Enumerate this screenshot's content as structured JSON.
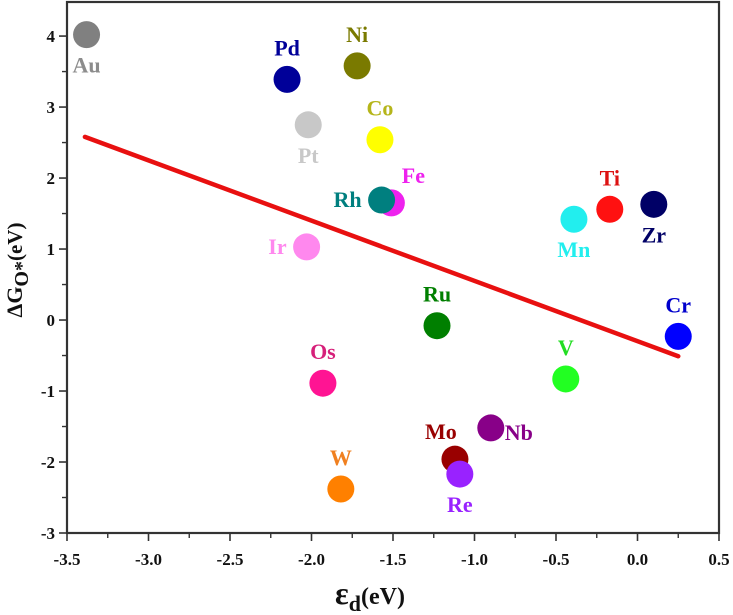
{
  "chart_data": {
    "type": "scatter",
    "title": "",
    "xlabel": {
      "main": "ε",
      "sub": "d",
      "unit": "(eV)"
    },
    "ylabel": {
      "main": "ΔG",
      "sub": "O*",
      "unit": "(eV)"
    },
    "xlim": [
      -3.5,
      0.5
    ],
    "ylim": [
      -3,
      4.48
    ],
    "xticks": [
      -3.5,
      -3.0,
      -2.5,
      -2.0,
      -1.5,
      -1.0,
      -0.5,
      0.0,
      0.5
    ],
    "xtick_labels": [
      "-3.5",
      "-3.0",
      "-2.5",
      "-2.0",
      "-1.5",
      "-1.0",
      "-0.5",
      "0.0",
      "0.5"
    ],
    "yticks": [
      -3,
      -2,
      -1,
      0,
      1,
      2,
      3,
      4
    ],
    "ytick_labels": [
      "-3",
      "-2",
      "-1",
      "0",
      "1",
      "2",
      "3",
      "4"
    ],
    "grid": false,
    "legend": "none",
    "points": [
      {
        "label": "Au",
        "x": -3.38,
        "y": 4.02,
        "color": "#808080",
        "label_color": "#8c8c8c",
        "label_pos": "below"
      },
      {
        "label": "Pd",
        "x": -2.15,
        "y": 3.39,
        "color": "#000099",
        "label_color": "#000099",
        "label_pos": "above"
      },
      {
        "label": "Ni",
        "x": -1.72,
        "y": 3.58,
        "color": "#7a7a00",
        "label_color": "#7a7a00",
        "label_pos": "above"
      },
      {
        "label": "Pt",
        "x": -2.02,
        "y": 2.75,
        "color": "#c8c8c8",
        "label_color": "#c8c8c8",
        "label_pos": "below"
      },
      {
        "label": "Co",
        "x": -1.58,
        "y": 2.54,
        "color": "#ffff00",
        "label_color": "#b5b51a",
        "label_pos": "above"
      },
      {
        "label": "Fe",
        "x": -1.51,
        "y": 1.65,
        "color": "#ee22ee",
        "label_color": "#ee22ee",
        "label_pos": "above-right"
      },
      {
        "label": "Rh",
        "x": -1.57,
        "y": 1.69,
        "color": "#007f7f",
        "label_color": "#007f7f",
        "label_pos": "left"
      },
      {
        "label": "Ir",
        "x": -2.03,
        "y": 1.03,
        "color": "#ff88ee",
        "label_color": "#ff88ee",
        "label_pos": "left"
      },
      {
        "label": "Ru",
        "x": -1.23,
        "y": -0.08,
        "color": "#007f00",
        "label_color": "#007f00",
        "label_pos": "above"
      },
      {
        "label": "Os",
        "x": -1.93,
        "y": -0.89,
        "color": "#ff1493",
        "label_color": "#d6207a",
        "label_pos": "above"
      },
      {
        "label": "W",
        "x": -1.82,
        "y": -2.38,
        "color": "#ff8000",
        "label_color": "#f08020",
        "label_pos": "above"
      },
      {
        "label": "Mo",
        "x": -1.12,
        "y": -1.96,
        "color": "#990000",
        "label_color": "#990000",
        "label_pos": "above-left"
      },
      {
        "label": "Re",
        "x": -1.09,
        "y": -2.17,
        "color": "#9922ff",
        "label_color": "#9922ff",
        "label_pos": "below"
      },
      {
        "label": "Nb",
        "x": -0.9,
        "y": -1.52,
        "color": "#880088",
        "label_color": "#880088",
        "label_pos": "below-right"
      },
      {
        "label": "V",
        "x": -0.44,
        "y": -0.83,
        "color": "#22ff22",
        "label_color": "#22dd22",
        "label_pos": "above"
      },
      {
        "label": "Mn",
        "x": -0.39,
        "y": 1.42,
        "color": "#22eeee",
        "label_color": "#22eeee",
        "label_pos": "below"
      },
      {
        "label": "Ti",
        "x": -0.17,
        "y": 1.56,
        "color": "#ff1111",
        "label_color": "#dd1111",
        "label_pos": "above"
      },
      {
        "label": "Zr",
        "x": 0.1,
        "y": 1.63,
        "color": "#000066",
        "label_color": "#000066",
        "label_pos": "below"
      },
      {
        "label": "Cr",
        "x": 0.25,
        "y": -0.23,
        "color": "#0000ff",
        "label_color": "#0000cc",
        "label_pos": "above"
      }
    ],
    "fit_line": {
      "x": [
        -3.39,
        0.25
      ],
      "y": [
        2.58,
        -0.51
      ],
      "color": "#e81010"
    }
  }
}
